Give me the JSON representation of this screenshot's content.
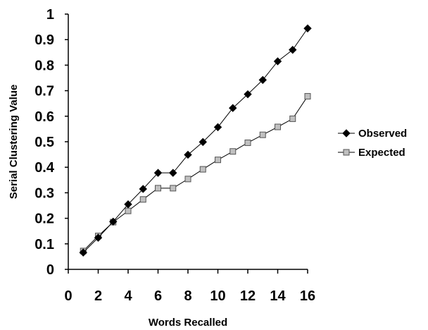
{
  "chart_data": {
    "type": "line",
    "xlabel": "Words Recalled",
    "ylabel": "Serial Clustering Value",
    "xlim": [
      0,
      16
    ],
    "ylim": [
      0,
      1
    ],
    "x_ticks": [
      "0",
      "2",
      "4",
      "6",
      "8",
      "10",
      "12",
      "14",
      "16"
    ],
    "y_ticks": [
      "0",
      "0.1",
      "0.2",
      "0.3",
      "0.4",
      "0.5",
      "0.6",
      "0.7",
      "0.8",
      "0.9",
      "1"
    ],
    "grid": false,
    "legend_position": "right",
    "x": [
      1,
      2,
      3,
      4,
      5,
      6,
      7,
      8,
      9,
      10,
      11,
      12,
      13,
      14,
      15,
      16
    ],
    "series": [
      {
        "name": "Observed",
        "marker": "diamond",
        "color": "#000000",
        "values": [
          0.066,
          0.124,
          0.187,
          0.255,
          0.315,
          0.378,
          0.378,
          0.449,
          0.499,
          0.557,
          0.632,
          0.686,
          0.742,
          0.815,
          0.86,
          0.944
        ]
      },
      {
        "name": "Expected",
        "marker": "square",
        "color": "#c0c0c0",
        "values": [
          0.072,
          0.131,
          0.185,
          0.229,
          0.274,
          0.318,
          0.318,
          0.354,
          0.392,
          0.429,
          0.462,
          0.496,
          0.527,
          0.558,
          0.59,
          0.678
        ]
      }
    ]
  }
}
